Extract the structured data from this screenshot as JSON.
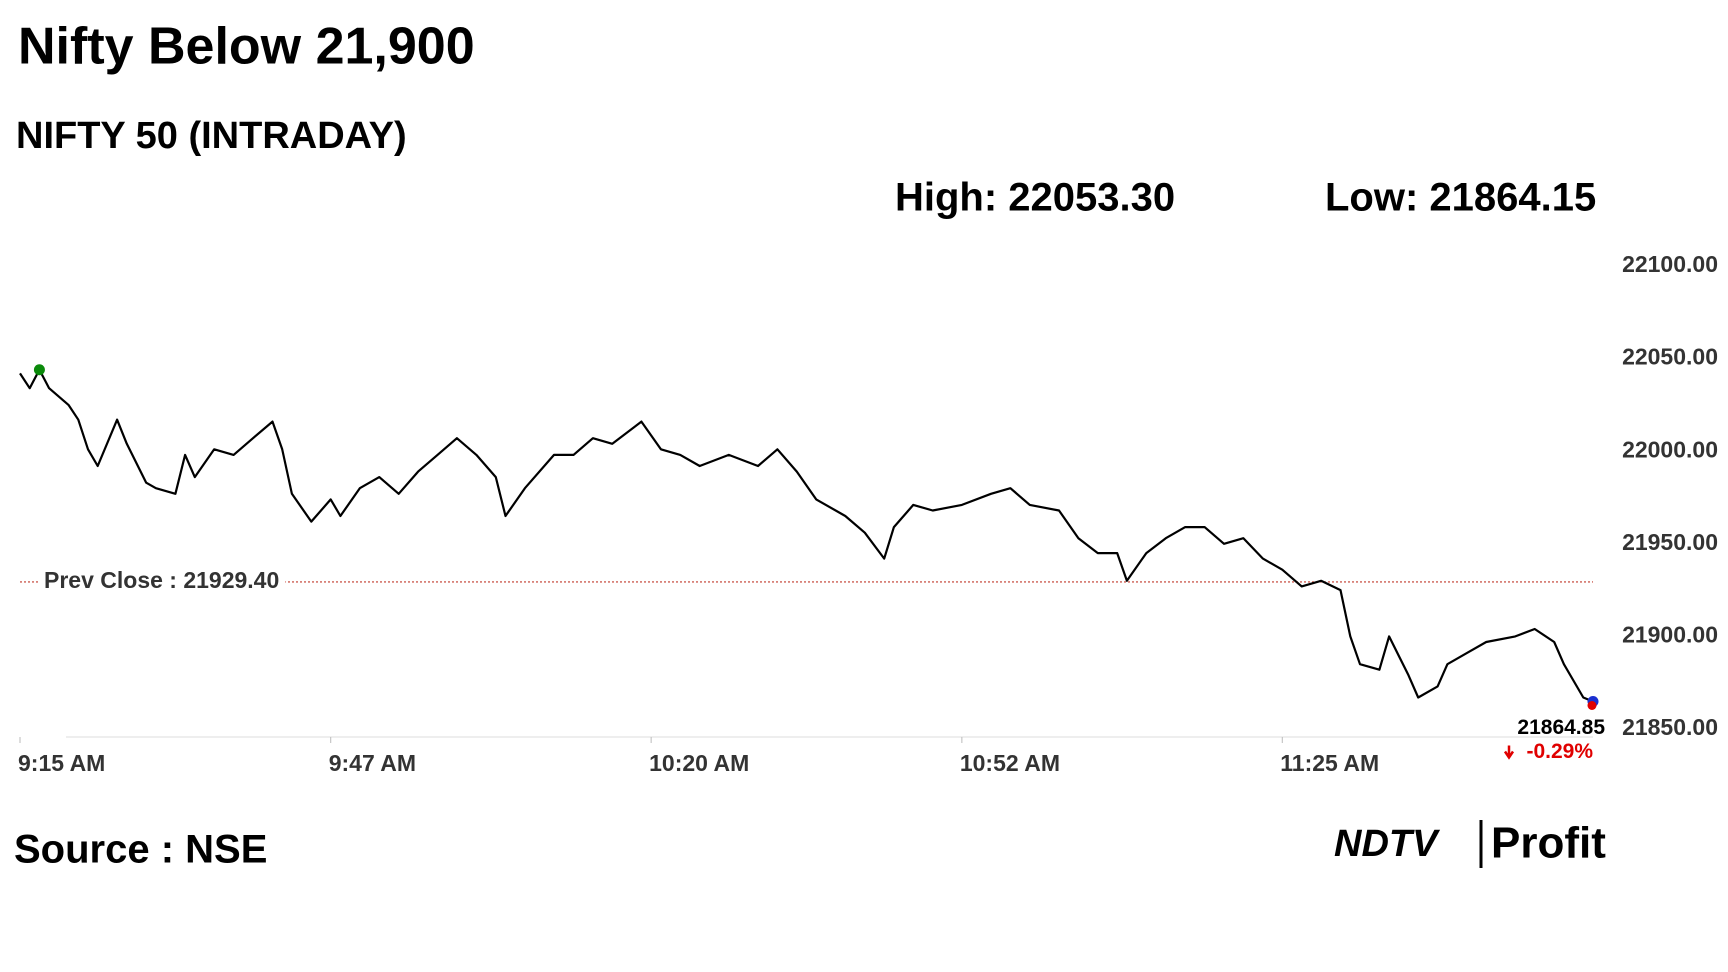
{
  "chart_data": {
    "type": "line",
    "title": "Nifty Below 21,900",
    "subtitle": "NIFTY 50 (INTRADAY)",
    "high_text": "High: 22053.30",
    "low_text": "Low: 21864.15",
    "source": "Source : NSE",
    "brand": [
      "NDTV",
      "Profit"
    ],
    "prev_close": 21929.4,
    "prev_close_label": "Prev Close : 21929.40",
    "change_label": "-0.29%",
    "x": [
      555,
      556,
      557,
      558,
      560,
      561,
      562,
      563,
      565,
      566,
      568,
      569,
      571,
      572,
      573,
      575,
      577,
      579,
      581,
      582,
      583,
      585,
      587,
      588,
      590,
      592,
      594,
      596,
      598,
      600,
      602,
      604,
      605,
      607,
      610,
      612,
      614,
      616,
      619,
      621,
      623,
      625,
      628,
      631,
      633,
      635,
      637,
      640,
      642,
      644,
      645,
      647,
      649,
      652,
      655,
      657,
      659,
      662,
      664,
      666,
      668,
      669,
      671,
      673,
      675,
      677,
      679,
      681,
      683,
      685,
      687,
      689,
      691,
      692,
      693,
      695,
      696,
      698,
      699,
      701,
      702,
      704,
      706,
      709,
      711,
      713,
      714,
      716,
      717
    ],
    "series": [
      {
        "name": "NIFTY 50",
        "color": "#000000",
        "values": [
          22042,
          22034,
          22044,
          22034,
          22025,
          22017,
          22001,
          21992,
          22017,
          22004,
          21983,
          21980,
          21977,
          21998,
          21986,
          22001,
          21998,
          22007,
          22016,
          22001,
          21977,
          21962,
          21974,
          21965,
          21980,
          21986,
          21977,
          21989,
          21998,
          22007,
          21998,
          21986,
          21965,
          21980,
          21998,
          21998,
          22007,
          22004,
          22016,
          22001,
          21998,
          21992,
          21998,
          21992,
          22001,
          21989,
          21974,
          21965,
          21956,
          21942,
          21959,
          21971,
          21968,
          21971,
          21977,
          21980,
          21971,
          21968,
          21953,
          21945,
          21945,
          21930,
          21945,
          21953,
          21959,
          21959,
          21950,
          21953,
          21942,
          21936,
          21927,
          21930,
          21925,
          21900,
          21885,
          21882,
          21900,
          21879,
          21867,
          21873,
          21885,
          21891,
          21897,
          21900,
          21904,
          21897,
          21885,
          21867,
          21864.85
        ]
      }
    ],
    "xlim": [
      555,
      717
    ],
    "xticks": [
      {
        "value": 555,
        "label": "9:15 AM"
      },
      {
        "value": 587,
        "label": "9:47 AM"
      },
      {
        "value": 620,
        "label": "10:20 AM"
      },
      {
        "value": 652,
        "label": "10:52 AM"
      },
      {
        "value": 685,
        "label": "11:25 AM"
      }
    ],
    "ylim": [
      21850,
      22100
    ],
    "yticks": [
      {
        "value": 21850,
        "label": "21850.00"
      },
      {
        "value": 21900,
        "label": "21900.00"
      },
      {
        "value": 21950,
        "label": "21950.00"
      },
      {
        "value": 22000,
        "label": "22000.00"
      },
      {
        "value": 22050,
        "label": "22050.00"
      },
      {
        "value": 22100,
        "label": "22100.00"
      }
    ],
    "prev_close_color": "#c0392b",
    "change_color": "#e00000"
  }
}
